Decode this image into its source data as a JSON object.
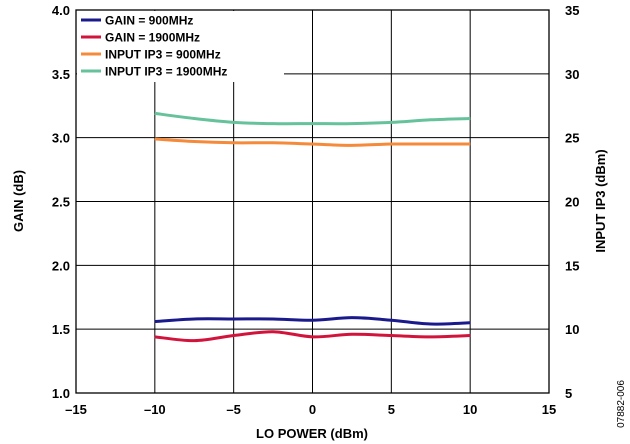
{
  "chart_data": {
    "type": "line",
    "xlabel": "LO POWER (dBm)",
    "ylabel": "GAIN (dB)",
    "y2label": "INPUT IP3 (dBm)",
    "xlim": [
      -15,
      15
    ],
    "ylim": [
      1.0,
      4.0
    ],
    "y2lim": [
      5,
      35
    ],
    "x_ticks": [
      -15,
      -10,
      -5,
      0,
      5,
      10,
      15
    ],
    "x_tick_labels": [
      "–15",
      "–10",
      "–5",
      "0",
      "5",
      "10",
      "15"
    ],
    "y_ticks": [
      1.0,
      1.5,
      2.0,
      2.5,
      3.0,
      3.5,
      4.0
    ],
    "y_tick_labels": [
      "1.0",
      "1.5",
      "2.0",
      "2.5",
      "3.0",
      "3.5",
      "4.0"
    ],
    "y2_ticks": [
      5,
      10,
      15,
      20,
      25,
      30,
      35
    ],
    "y2_tick_labels": [
      "5",
      "10",
      "15",
      "20",
      "25",
      "30",
      "35"
    ],
    "grid": true,
    "legend_position": "top-left",
    "watermark": "07882-006",
    "series": [
      {
        "name": "GAIN = 900MHz",
        "axis": "left",
        "color": "#1a1a8c",
        "x": [
          -10,
          -7.5,
          -5,
          -2.5,
          0,
          2.5,
          5,
          7.5,
          10
        ],
        "y": [
          1.56,
          1.58,
          1.58,
          1.58,
          1.57,
          1.59,
          1.57,
          1.54,
          1.55
        ]
      },
      {
        "name": "GAIN = 1900MHz",
        "axis": "left",
        "color": "#d2143c",
        "x": [
          -10,
          -7.5,
          -5,
          -2.5,
          0,
          2.5,
          5,
          7.5,
          10
        ],
        "y": [
          1.44,
          1.41,
          1.45,
          1.48,
          1.44,
          1.46,
          1.45,
          1.44,
          1.45
        ]
      },
      {
        "name": "INPUT IP3 = 900MHz",
        "axis": "right",
        "color": "#f58a3a",
        "x": [
          -10,
          -7.5,
          -5,
          -2.5,
          0,
          2.5,
          5,
          7.5,
          10
        ],
        "y": [
          24.9,
          24.7,
          24.6,
          24.6,
          24.5,
          24.4,
          24.5,
          24.5,
          24.5
        ]
      },
      {
        "name": "INPUT IP3 = 1900MHz",
        "axis": "right",
        "color": "#66c29a",
        "x": [
          -10,
          -7.5,
          -5,
          -2.5,
          0,
          2.5,
          5,
          7.5,
          10
        ],
        "y": [
          26.9,
          26.5,
          26.2,
          26.1,
          26.1,
          26.1,
          26.2,
          26.4,
          26.5
        ]
      }
    ]
  }
}
